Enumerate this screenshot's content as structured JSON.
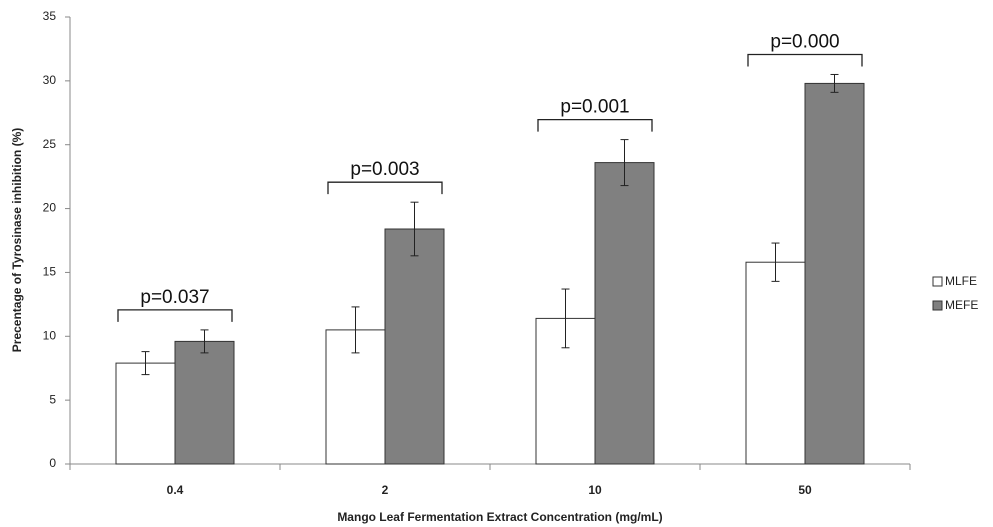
{
  "chart_data": {
    "type": "bar",
    "xlabel": "Mango Leaf Fermentation Extract Concentration (mg/mL)",
    "ylabel": "Precentage of Tyrosinase inhibition (%)",
    "categories": [
      "0.4",
      "2",
      "10",
      "50"
    ],
    "series": [
      {
        "name": "MLFE",
        "color": "#ffffff",
        "values": [
          7.9,
          10.5,
          11.4,
          15.8
        ],
        "errors": [
          0.9,
          1.8,
          2.3,
          1.5
        ]
      },
      {
        "name": "MEFE",
        "color": "#808080",
        "values": [
          9.6,
          18.4,
          23.6,
          29.8
        ],
        "errors": [
          0.9,
          2.1,
          1.8,
          0.7
        ]
      }
    ],
    "annotations": [
      "p=0.037",
      "p=0.003",
      "p=0.001",
      "p=0.000"
    ],
    "ylim": [
      0,
      35
    ],
    "yticks": [
      0,
      5,
      10,
      15,
      20,
      25,
      30,
      35
    ],
    "grid": false,
    "legend": "right"
  }
}
